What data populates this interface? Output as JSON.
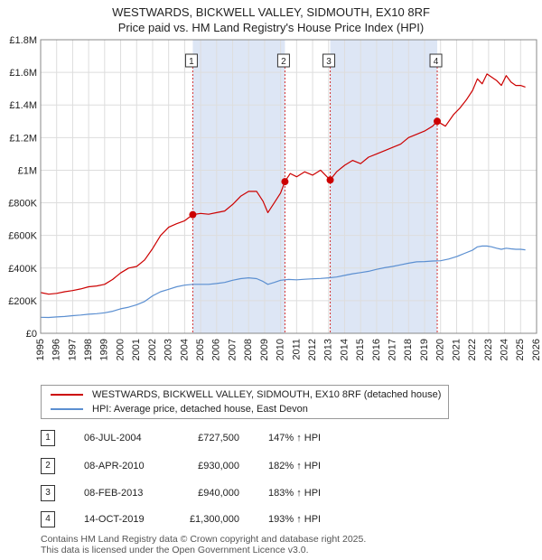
{
  "title_line1": "WESTWARDS, BICKWELL VALLEY, SIDMOUTH, EX10 8RF",
  "title_line2": "Price paid vs. HM Land Registry's House Price Index (HPI)",
  "colors": {
    "property": "#cc0000",
    "hpi": "#5b8fd1",
    "shade": "#dde6f5",
    "vline": "#d32f2f"
  },
  "legend": {
    "property_label": "WESTWARDS, BICKWELL VALLEY, SIDMOUTH, EX10 8RF (detached house)",
    "hpi_label": "HPI: Average price, detached house, East Devon"
  },
  "transactions": [
    {
      "num": "1",
      "date": "06-JUL-2004",
      "price": "£727,500",
      "hpi": "147% ↑ HPI"
    },
    {
      "num": "2",
      "date": "08-APR-2010",
      "price": "£930,000",
      "hpi": "182% ↑ HPI"
    },
    {
      "num": "3",
      "date": "08-FEB-2013",
      "price": "£940,000",
      "hpi": "183% ↑ HPI"
    },
    {
      "num": "4",
      "date": "14-OCT-2019",
      "price": "£1,300,000",
      "hpi": "193% ↑ HPI"
    }
  ],
  "footer": {
    "line1": "Contains HM Land Registry data © Crown copyright and database right 2025.",
    "line2": "This data is licensed under the Open Government Licence v3.0."
  },
  "chart_data": {
    "type": "line",
    "title": "WESTWARDS, BICKWELL VALLEY, SIDMOUTH, EX10 8RF",
    "subtitle": "Price paid vs. HM Land Registry's House Price Index (HPI)",
    "xlim": [
      1995,
      2026
    ],
    "ylim": [
      0,
      1800000
    ],
    "x_ticks": [
      1995,
      1996,
      1997,
      1998,
      1999,
      2000,
      2001,
      2002,
      2003,
      2004,
      2005,
      2006,
      2007,
      2008,
      2009,
      2010,
      2011,
      2012,
      2013,
      2014,
      2015,
      2016,
      2017,
      2018,
      2019,
      2020,
      2021,
      2022,
      2023,
      2024,
      2025,
      2026
    ],
    "y_ticks": [
      {
        "v": 0,
        "label": "£0"
      },
      {
        "v": 200000,
        "label": "£200K"
      },
      {
        "v": 400000,
        "label": "£400K"
      },
      {
        "v": 600000,
        "label": "£600K"
      },
      {
        "v": 800000,
        "label": "£800K"
      },
      {
        "v": 1000000,
        "label": "£1M"
      },
      {
        "v": 1200000,
        "label": "£1.2M"
      },
      {
        "v": 1400000,
        "label": "£1.4M"
      },
      {
        "v": 1600000,
        "label": "£1.6M"
      },
      {
        "v": 1800000,
        "label": "£1.8M"
      }
    ],
    "shaded_ranges": [
      [
        2004.51,
        2010.27
      ],
      [
        2013.1,
        2019.79
      ]
    ],
    "markers": [
      {
        "label": "1",
        "x": 2004.51,
        "y": 727500
      },
      {
        "label": "2",
        "x": 2010.27,
        "y": 930000
      },
      {
        "label": "3",
        "x": 2013.1,
        "y": 940000
      },
      {
        "label": "4",
        "x": 2019.79,
        "y": 1300000
      }
    ],
    "series": [
      {
        "name": "WESTWARDS, BICKWELL VALLEY, SIDMOUTH, EX10 8RF (detached house)",
        "x": [
          1995.0,
          1995.5,
          1996.0,
          1996.5,
          1997.0,
          1997.5,
          1998.0,
          1998.5,
          1999.0,
          1999.5,
          2000.0,
          2000.5,
          2001.0,
          2001.5,
          2002.0,
          2002.5,
          2003.0,
          2003.5,
          2004.0,
          2004.51,
          2005.0,
          2005.5,
          2006.0,
          2006.5,
          2007.0,
          2007.5,
          2008.0,
          2008.5,
          2008.9,
          2009.2,
          2009.6,
          2010.0,
          2010.27,
          2010.6,
          2011.0,
          2011.5,
          2012.0,
          2012.5,
          2013.1,
          2013.5,
          2014.0,
          2014.5,
          2015.0,
          2015.5,
          2016.0,
          2016.5,
          2017.0,
          2017.5,
          2018.0,
          2018.5,
          2019.0,
          2019.5,
          2019.79,
          2020.3,
          2020.8,
          2021.2,
          2021.6,
          2022.0,
          2022.3,
          2022.6,
          2022.9,
          2023.2,
          2023.5,
          2023.8,
          2024.1,
          2024.4,
          2024.7,
          2025.0,
          2025.3
        ],
        "y": [
          250000,
          240000,
          245000,
          255000,
          262000,
          272000,
          285000,
          290000,
          300000,
          330000,
          370000,
          400000,
          410000,
          450000,
          520000,
          600000,
          650000,
          672000,
          690000,
          727500,
          735000,
          730000,
          740000,
          750000,
          790000,
          840000,
          870000,
          870000,
          810000,
          740000,
          800000,
          860000,
          930000,
          980000,
          960000,
          990000,
          970000,
          1000000,
          940000,
          990000,
          1030000,
          1060000,
          1040000,
          1080000,
          1100000,
          1120000,
          1140000,
          1160000,
          1200000,
          1220000,
          1240000,
          1270000,
          1300000,
          1270000,
          1340000,
          1380000,
          1430000,
          1490000,
          1560000,
          1530000,
          1590000,
          1570000,
          1550000,
          1520000,
          1580000,
          1540000,
          1520000,
          1520000,
          1510000
        ]
      },
      {
        "name": "HPI: Average price, detached house, East Devon",
        "x": [
          1995.0,
          1995.5,
          1996.0,
          1996.5,
          1997.0,
          1997.5,
          1998.0,
          1998.5,
          1999.0,
          1999.5,
          2000.0,
          2000.5,
          2001.0,
          2001.5,
          2002.0,
          2002.5,
          2003.0,
          2003.5,
          2004.0,
          2004.5,
          2005.0,
          2005.5,
          2006.0,
          2006.5,
          2007.0,
          2007.5,
          2008.0,
          2008.5,
          2008.9,
          2009.2,
          2009.6,
          2010.0,
          2010.5,
          2011.0,
          2011.5,
          2012.0,
          2012.5,
          2013.0,
          2013.5,
          2014.0,
          2014.5,
          2015.0,
          2015.5,
          2016.0,
          2016.5,
          2017.0,
          2017.5,
          2018.0,
          2018.5,
          2019.0,
          2019.5,
          2020.0,
          2020.5,
          2021.0,
          2021.5,
          2022.0,
          2022.3,
          2022.6,
          2022.9,
          2023.2,
          2023.5,
          2023.8,
          2024.1,
          2024.4,
          2024.7,
          2025.0,
          2025.3
        ],
        "y": [
          98000,
          97000,
          100000,
          103000,
          108000,
          112000,
          117000,
          120000,
          126000,
          135000,
          150000,
          160000,
          175000,
          195000,
          230000,
          255000,
          270000,
          285000,
          295000,
          300000,
          300000,
          300000,
          305000,
          312000,
          325000,
          335000,
          340000,
          335000,
          318000,
          300000,
          312000,
          325000,
          330000,
          328000,
          331000,
          334000,
          336000,
          340000,
          345000,
          355000,
          365000,
          372000,
          380000,
          392000,
          402000,
          410000,
          420000,
          430000,
          438000,
          440000,
          443000,
          445000,
          455000,
          470000,
          490000,
          510000,
          530000,
          535000,
          535000,
          530000,
          522000,
          515000,
          522000,
          518000,
          515000,
          515000,
          512000
        ]
      }
    ]
  }
}
